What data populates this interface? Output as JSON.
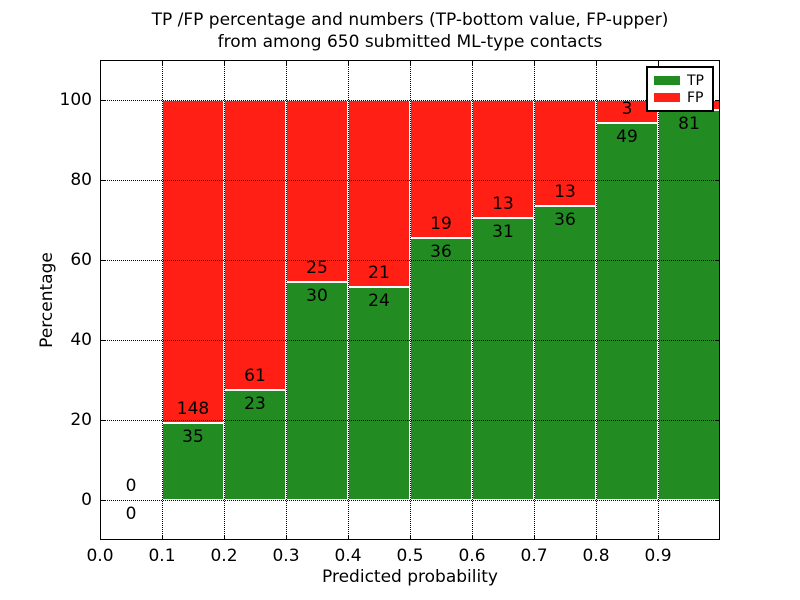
{
  "title": {
    "line1": "TP /FP percentage and numbers (TP-bottom value, FP-upper)",
    "line2": "from among 650 submitted ML-type contacts"
  },
  "colors": {
    "tp": "#228b22",
    "fp": "#ff1f14",
    "axis": "#000000",
    "background": "#ffffff",
    "label_text": "#000000"
  },
  "chart_data": {
    "type": "bar",
    "stacked": true,
    "title": "TP /FP percentage and numbers (TP-bottom value, FP-upper)\nfrom among 650 submitted ML-type contacts",
    "xlabel": "Predicted probability",
    "ylabel": "Percentage",
    "xlim": [
      0.0,
      1.0
    ],
    "ylim": [
      -10,
      110
    ],
    "xticks": [
      0.0,
      0.1,
      0.2,
      0.3,
      0.4,
      0.5,
      0.6,
      0.7,
      0.8,
      0.9
    ],
    "xtick_labels": [
      "0.0",
      "0.1",
      "0.2",
      "0.3",
      "0.4",
      "0.5",
      "0.6",
      "0.7",
      "0.8",
      "0.9"
    ],
    "yticks": [
      0,
      20,
      40,
      60,
      80,
      100
    ],
    "ytick_labels": [
      "0",
      "20",
      "40",
      "60",
      "80",
      "100"
    ],
    "grid": true,
    "grid_style": "dotted",
    "legend_position": "upper-right",
    "bin_width": 0.1,
    "categories": [
      "0.0-0.1",
      "0.1-0.2",
      "0.2-0.3",
      "0.3-0.4",
      "0.4-0.5",
      "0.5-0.6",
      "0.6-0.7",
      "0.7-0.8",
      "0.8-0.9",
      "0.9-1.0"
    ],
    "series": [
      {
        "name": "TP",
        "color_key": "tp",
        "pct": [
          0,
          19.13,
          27.38,
          54.55,
          53.33,
          65.45,
          70.45,
          73.47,
          94.23,
          97.59
        ],
        "count_labels": [
          "0",
          "35",
          "23",
          "30",
          "24",
          "36",
          "31",
          "36",
          "49",
          "81"
        ]
      },
      {
        "name": "FP",
        "color_key": "fp",
        "pct": [
          0,
          80.87,
          72.62,
          45.45,
          46.67,
          34.55,
          29.55,
          26.53,
          5.77,
          2.41
        ],
        "count_labels": [
          "0",
          "148",
          "61",
          "25",
          "21",
          "19",
          "13",
          "13",
          "3",
          ""
        ]
      }
    ]
  },
  "legend": {
    "items": [
      {
        "label": "TP",
        "color_key": "tp"
      },
      {
        "label": "FP",
        "color_key": "fp"
      }
    ]
  }
}
